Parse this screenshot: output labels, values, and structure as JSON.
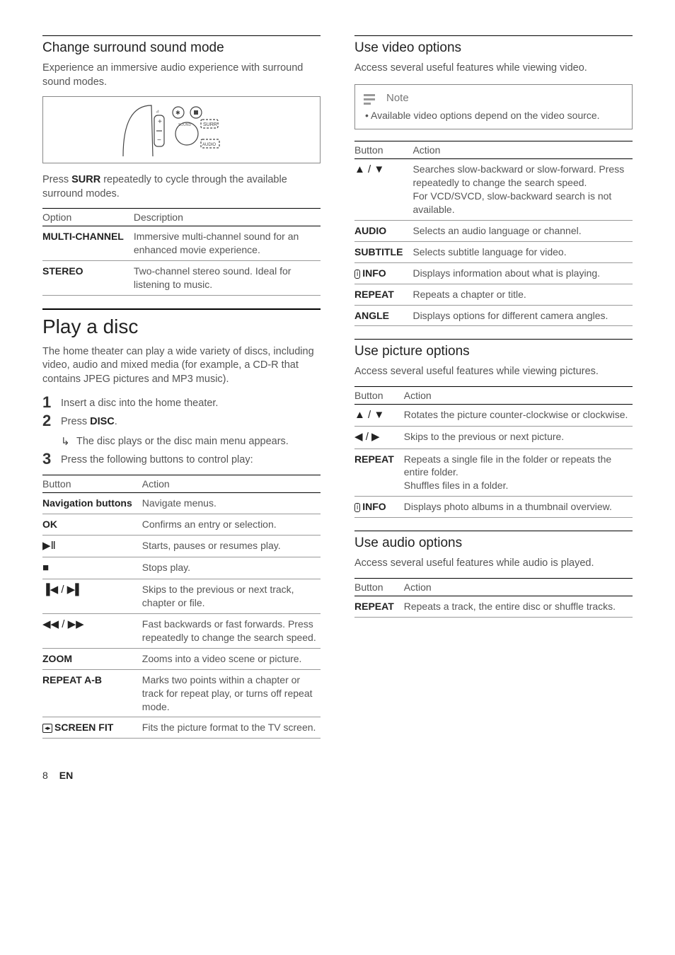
{
  "left": {
    "surround": {
      "title": "Change surround sound mode",
      "intro": "Experience an immersive audio experience with surround sound modes.",
      "press_text_before": "Press ",
      "press_key": "SURR",
      "press_text_after": " repeatedly to cycle through the available surround modes.",
      "table": {
        "headers": [
          "Option",
          "Description"
        ],
        "rows": [
          {
            "key": "MULTI-CHANNEL",
            "desc": "Immersive multi-channel sound for an enhanced movie experience."
          },
          {
            "key": "STEREO",
            "desc": "Two-channel stereo sound. Ideal for listening to music."
          }
        ]
      }
    },
    "playdisc": {
      "title": "Play a disc",
      "intro": "The home theater can play a wide variety of discs, including video, audio and mixed media (for example, a CD-R that contains JPEG pictures and MP3 music).",
      "steps": [
        {
          "num": "1",
          "text": "Insert a disc into the home theater."
        },
        {
          "num": "2",
          "text_before": "Press ",
          "key": "DISC",
          "text_after": ".",
          "sub": "The disc plays or the disc main menu appears."
        },
        {
          "num": "3",
          "text": "Press the following buttons to control play:"
        }
      ],
      "table": {
        "headers": [
          "Button",
          "Action"
        ],
        "rows": [
          {
            "key_html": "Navigation buttons",
            "desc": "Navigate menus."
          },
          {
            "key_html": "OK",
            "desc": "Confirms an entry or selection."
          },
          {
            "key_glyph": "▶Ⅱ",
            "desc": "Starts, pauses or resumes play."
          },
          {
            "key_glyph": "■",
            "desc": "Stops play."
          },
          {
            "key_glyph": "▐◀ / ▶▌",
            "desc": "Skips to the previous or next track, chapter or file."
          },
          {
            "key_glyph": "◀◀ / ▶▶",
            "desc": "Fast backwards or fast forwards. Press repeatedly to change the search speed."
          },
          {
            "key_html": "ZOOM",
            "desc": "Zooms into a video scene or picture."
          },
          {
            "key_html": "REPEAT A-B",
            "desc": "Marks two points within a chapter or track for repeat play, or turns off repeat mode."
          },
          {
            "key_screen": "SCREEN FIT",
            "desc": "Fits the picture format to the TV screen."
          }
        ]
      }
    }
  },
  "right": {
    "video": {
      "title": "Use video options",
      "intro": "Access several useful features while viewing video.",
      "note_label": "Note",
      "note_body": "Available video options depend on the video source.",
      "table": {
        "headers": [
          "Button",
          "Action"
        ],
        "rows": [
          {
            "key_glyph": "▲ / ▼",
            "desc": "Searches slow-backward or slow-forward. Press repeatedly to change the search speed.\nFor VCD/SVCD, slow-backward search is not available."
          },
          {
            "key_html": "AUDIO",
            "desc": "Selects an audio language or channel."
          },
          {
            "key_html": "SUBTITLE",
            "desc": "Selects subtitle language for video."
          },
          {
            "key_info": "INFO",
            "desc": "Displays information about what is playing."
          },
          {
            "key_html": "REPEAT",
            "desc": "Repeats a chapter or title."
          },
          {
            "key_html": "ANGLE",
            "desc": "Displays options for different camera angles."
          }
        ]
      }
    },
    "picture": {
      "title": "Use picture options",
      "intro": "Access several useful features while viewing pictures.",
      "table": {
        "headers": [
          "Button",
          "Action"
        ],
        "rows": [
          {
            "key_glyph": "▲ / ▼",
            "desc": "Rotates the picture counter-clockwise or clockwise."
          },
          {
            "key_glyph": "◀ / ▶",
            "desc": "Skips to the previous or next picture."
          },
          {
            "key_html": "REPEAT",
            "desc": "Repeats a single file in the folder or repeats the entire folder.\nShuffles files in a folder."
          },
          {
            "key_info": "INFO",
            "desc": "Displays photo albums in a thumbnail overview."
          }
        ]
      }
    },
    "audio": {
      "title": "Use audio options",
      "intro": "Access several useful features while audio is played.",
      "table": {
        "headers": [
          "Button",
          "Action"
        ],
        "rows": [
          {
            "key_html": "REPEAT",
            "desc": "Repeats a track, the entire disc or shuffle tracks."
          }
        ]
      }
    }
  },
  "footer": {
    "page": "8",
    "lang": "EN"
  }
}
